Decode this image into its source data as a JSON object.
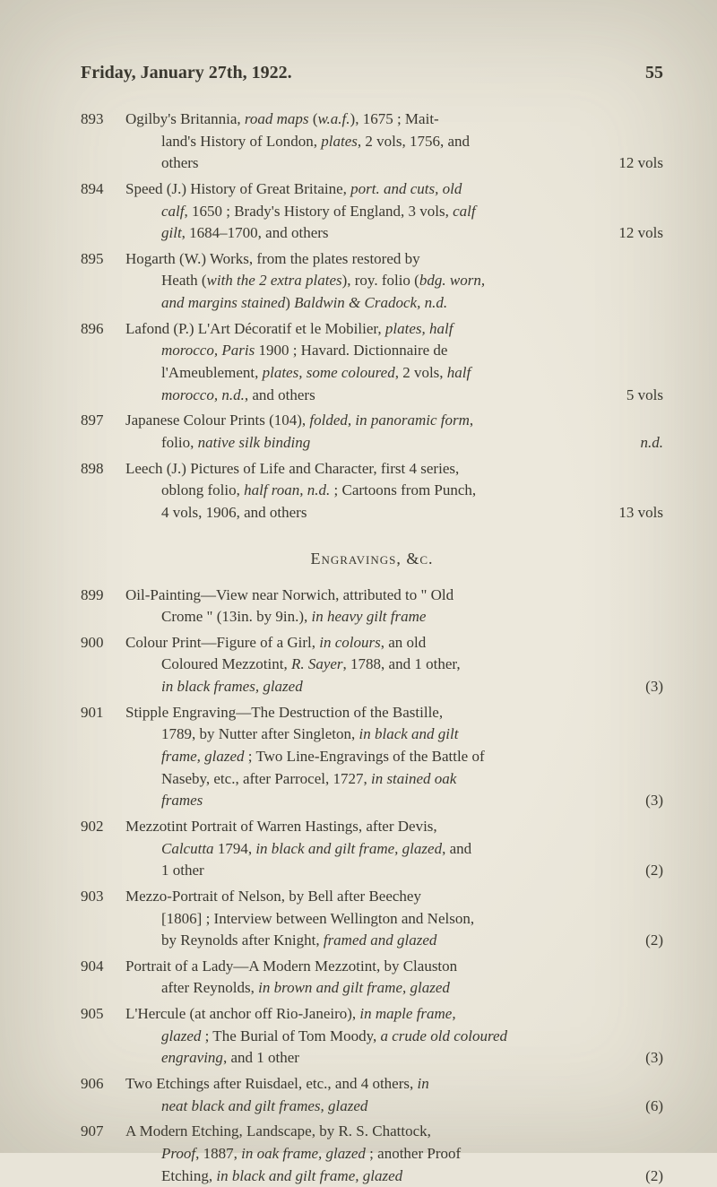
{
  "header": {
    "title": "Friday, January 27th, 1922.",
    "pageNum": "55"
  },
  "sectionHead": "Engravings, &c.",
  "entries": [
    {
      "num": "893",
      "lines": [
        {
          "t": "hang",
          "segs": [
            {
              "text": "Ogilby's Britannia, "
            },
            {
              "text": "road maps",
              "i": true
            },
            {
              "text": " ("
            },
            {
              "text": "w.a.f.",
              "i": true
            },
            {
              "text": "), 1675 ; Mait-"
            }
          ]
        },
        {
          "t": "cont",
          "segs": [
            {
              "text": "land's History of London, "
            },
            {
              "text": "plates",
              "i": true
            },
            {
              "text": ", 2 vols, 1756, and"
            }
          ]
        },
        {
          "t": "cont",
          "right": "12 vols",
          "segs": [
            {
              "text": "others"
            }
          ]
        }
      ]
    },
    {
      "num": "894",
      "lines": [
        {
          "t": "hang",
          "segs": [
            {
              "text": "Speed (J.) History of Great Britaine, "
            },
            {
              "text": "port. and cuts, old",
              "i": true
            }
          ]
        },
        {
          "t": "cont",
          "segs": [
            {
              "text": "calf",
              "i": true
            },
            {
              "text": ", 1650 ; Brady's History of England, 3 vols, "
            },
            {
              "text": "calf",
              "i": true
            }
          ]
        },
        {
          "t": "cont",
          "right": "12 vols",
          "segs": [
            {
              "text": "gilt",
              "i": true
            },
            {
              "text": ", 1684–1700, and others"
            }
          ]
        }
      ]
    },
    {
      "num": "895",
      "lines": [
        {
          "t": "hang",
          "segs": [
            {
              "text": "Hogarth (W.) Works, from the plates restored by"
            }
          ]
        },
        {
          "t": "cont",
          "segs": [
            {
              "text": "Heath ("
            },
            {
              "text": "with the 2 extra plates",
              "i": true
            },
            {
              "text": "), roy. folio ("
            },
            {
              "text": "bdg. worn,",
              "i": true
            }
          ]
        },
        {
          "t": "cont",
          "segs": [
            {
              "text": "and margins stained",
              "i": true
            },
            {
              "text": ")          "
            },
            {
              "text": "Baldwin & Cradock, n.d.",
              "i": true
            }
          ]
        }
      ]
    },
    {
      "num": "896",
      "lines": [
        {
          "t": "hang",
          "segs": [
            {
              "text": "Lafond (P.) L'Art Décoratif et le Mobilier, "
            },
            {
              "text": "plates, half",
              "i": true
            }
          ]
        },
        {
          "t": "cont",
          "segs": [
            {
              "text": "morocco, Paris",
              "i": true
            },
            {
              "text": " 1900 ;  Havard. Dictionnaire de"
            }
          ]
        },
        {
          "t": "cont",
          "segs": [
            {
              "text": "l'Ameublement, "
            },
            {
              "text": "plates, some coloured",
              "i": true
            },
            {
              "text": ", 2 vols, "
            },
            {
              "text": "half",
              "i": true
            }
          ]
        },
        {
          "t": "cont",
          "right": "5 vols",
          "segs": [
            {
              "text": "morocco, n.d.",
              "i": true
            },
            {
              "text": ", and others"
            }
          ]
        }
      ]
    },
    {
      "num": "897",
      "lines": [
        {
          "t": "hang",
          "segs": [
            {
              "text": "Japanese Colour Prints (104), "
            },
            {
              "text": "folded, in panoramic form",
              "i": true
            },
            {
              "text": ","
            }
          ]
        },
        {
          "t": "cont",
          "right": "n.d.",
          "rightItalic": true,
          "segs": [
            {
              "text": "folio, "
            },
            {
              "text": "native silk binding",
              "i": true
            }
          ]
        }
      ]
    },
    {
      "num": "898",
      "lines": [
        {
          "t": "hang",
          "segs": [
            {
              "text": "Leech (J.) Pictures of Life and Character, first 4 series,"
            }
          ]
        },
        {
          "t": "cont",
          "segs": [
            {
              "text": "oblong folio, "
            },
            {
              "text": "half roan, n.d.",
              "i": true
            },
            {
              "text": " ; Cartoons from Punch,"
            }
          ]
        },
        {
          "t": "cont",
          "right": "13 vols",
          "segs": [
            {
              "text": "4 vols, 1906, and others"
            }
          ]
        }
      ]
    }
  ],
  "entries2": [
    {
      "num": "899",
      "lines": [
        {
          "t": "hang",
          "segs": [
            {
              "text": "Oil-Painting—View near Norwich, attributed to \" Old"
            }
          ]
        },
        {
          "t": "cont",
          "segs": [
            {
              "text": "Crome \" (13in. by 9in.), "
            },
            {
              "text": "in heavy gilt frame",
              "i": true
            }
          ]
        }
      ]
    },
    {
      "num": "900",
      "lines": [
        {
          "t": "hang",
          "segs": [
            {
              "text": "Colour Print—Figure of a Girl, "
            },
            {
              "text": "in colours",
              "i": true
            },
            {
              "text": ", an old"
            }
          ]
        },
        {
          "t": "cont",
          "segs": [
            {
              "text": "Coloured Mezzotint, "
            },
            {
              "text": "R. Sayer",
              "i": true
            },
            {
              "text": ", 1788, and 1 other,"
            }
          ]
        },
        {
          "t": "cont",
          "right": "(3)",
          "segs": [
            {
              "text": "in black frames, glazed",
              "i": true
            }
          ]
        }
      ]
    },
    {
      "num": "901",
      "lines": [
        {
          "t": "hang",
          "segs": [
            {
              "text": "Stipple Engraving—The Destruction of the Bastille,"
            }
          ]
        },
        {
          "t": "cont",
          "segs": [
            {
              "text": "1789, by Nutter after Singleton, "
            },
            {
              "text": "in black and gilt",
              "i": true
            }
          ]
        },
        {
          "t": "cont",
          "segs": [
            {
              "text": "frame, glazed",
              "i": true
            },
            {
              "text": " ; Two Line-Engravings of the Battle of"
            }
          ]
        },
        {
          "t": "cont",
          "segs": [
            {
              "text": "Naseby, etc., after Parrocel, 1727, "
            },
            {
              "text": "in stained oak",
              "i": true
            }
          ]
        },
        {
          "t": "cont",
          "right": "(3)",
          "segs": [
            {
              "text": "frames",
              "i": true
            }
          ]
        }
      ]
    },
    {
      "num": "902",
      "lines": [
        {
          "t": "hang",
          "segs": [
            {
              "text": "Mezzotint Portrait of Warren Hastings, after Devis,"
            }
          ]
        },
        {
          "t": "cont",
          "segs": [
            {
              "text": "Calcutta",
              "i": true
            },
            {
              "text": " 1794, "
            },
            {
              "text": "in black and gilt frame, glazed",
              "i": true
            },
            {
              "text": ", and"
            }
          ]
        },
        {
          "t": "cont",
          "right": "(2)",
          "segs": [
            {
              "text": "1 other"
            }
          ]
        }
      ]
    },
    {
      "num": "903",
      "lines": [
        {
          "t": "hang",
          "segs": [
            {
              "text": "Mezzo-Portrait of Nelson, by Bell after Beechey"
            }
          ]
        },
        {
          "t": "cont",
          "segs": [
            {
              "text": "[1806] ; Interview between Wellington and Nelson,"
            }
          ]
        },
        {
          "t": "cont",
          "right": "(2)",
          "segs": [
            {
              "text": "by Reynolds after Knight, "
            },
            {
              "text": "framed and glazed",
              "i": true
            }
          ]
        }
      ]
    },
    {
      "num": "904",
      "lines": [
        {
          "t": "hang",
          "segs": [
            {
              "text": "Portrait of a Lady—A Modern Mezzotint, by Clauston"
            }
          ]
        },
        {
          "t": "cont",
          "segs": [
            {
              "text": "after Reynolds, "
            },
            {
              "text": "in brown and gilt frame, glazed",
              "i": true
            }
          ]
        }
      ]
    },
    {
      "num": "905",
      "lines": [
        {
          "t": "hang",
          "segs": [
            {
              "text": "L'Hercule (at anchor off Rio-Janeiro), "
            },
            {
              "text": "in maple frame,",
              "i": true
            }
          ]
        },
        {
          "t": "cont",
          "segs": [
            {
              "text": "glazed",
              "i": true
            },
            {
              "text": " ; The Burial of Tom Moody, "
            },
            {
              "text": "a crude old coloured",
              "i": true
            }
          ]
        },
        {
          "t": "cont",
          "right": "(3)",
          "segs": [
            {
              "text": "engraving",
              "i": true
            },
            {
              "text": ", and 1 other"
            }
          ]
        }
      ]
    },
    {
      "num": "906",
      "lines": [
        {
          "t": "hang",
          "segs": [
            {
              "text": "Two Etchings after Ruisdael, etc., and 4 others, "
            },
            {
              "text": "in",
              "i": true
            }
          ]
        },
        {
          "t": "cont",
          "right": "(6)",
          "segs": [
            {
              "text": "neat black and gilt frames, glazed",
              "i": true
            }
          ]
        }
      ]
    },
    {
      "num": "907",
      "lines": [
        {
          "t": "hang",
          "segs": [
            {
              "text": "A Modern Etching, Landscape, by R. S. Chattock,"
            }
          ]
        },
        {
          "t": "cont",
          "segs": [
            {
              "text": "Proof",
              "i": true
            },
            {
              "text": ", 1887, "
            },
            {
              "text": "in oak frame, glazed",
              "i": true
            },
            {
              "text": " ; another Proof"
            }
          ]
        },
        {
          "t": "cont",
          "right": "(2)",
          "segs": [
            {
              "text": "Etching, "
            },
            {
              "text": "in black and gilt frame, glazed",
              "i": true
            }
          ]
        }
      ]
    }
  ]
}
